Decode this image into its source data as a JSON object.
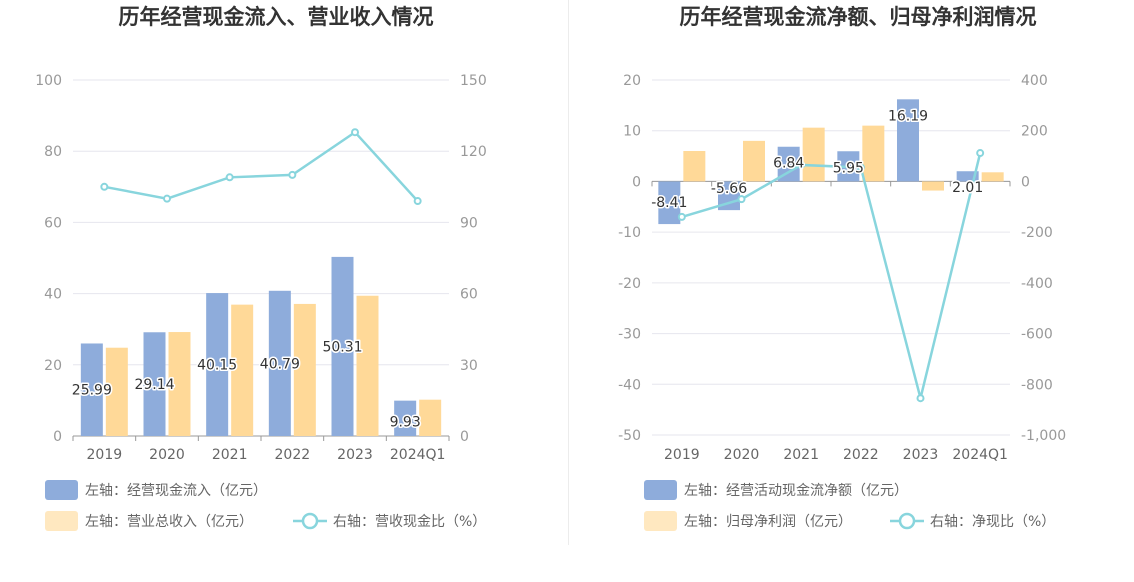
{
  "chart_data": [
    {
      "type": "bar",
      "title": "历年经营现金流入、营业收入情况",
      "categories": [
        "2019",
        "2020",
        "2021",
        "2022",
        "2023",
        "2024Q1"
      ],
      "y_left": {
        "ylim": [
          0,
          100
        ],
        "ticks": [
          "0",
          "20",
          "40",
          "60",
          "80",
          "100"
        ]
      },
      "y_right": {
        "ylim": [
          0,
          150
        ],
        "ticks": [
          "0",
          "30",
          "60",
          "90",
          "120",
          "150"
        ]
      },
      "series": [
        {
          "name": "左轴：经营现金流入（亿元）",
          "type": "bar",
          "axis": "left",
          "color": "#8eacdb",
          "values": [
            25.99,
            29.14,
            40.15,
            40.79,
            50.31,
            9.93
          ],
          "labels": [
            "25.99",
            "29.14",
            "40.15",
            "40.79",
            "50.31",
            "9.93"
          ]
        },
        {
          "name": "左轴：营业总收入（亿元）",
          "type": "bar",
          "axis": "left",
          "color": "#ffd998",
          "values": [
            24.8,
            29.2,
            36.9,
            37.1,
            39.4,
            10.2
          ]
        },
        {
          "name": "右轴：营收现金比（%）",
          "type": "line",
          "axis": "right",
          "color": "#88d5dd",
          "values": [
            105,
            100,
            109,
            110,
            128,
            99
          ]
        }
      ],
      "legend": [
        {
          "text": "左轴：经营现金流入（亿元）",
          "kind": "bar",
          "color": "#8eacdb"
        },
        {
          "text": "左轴：营业总收入（亿元）",
          "kind": "bar",
          "color": "#ffe8c0"
        },
        {
          "text": "右轴：营收现金比（%）",
          "kind": "line",
          "color": "#88d5dd"
        }
      ]
    },
    {
      "type": "bar",
      "title": "历年经营现金流净额、归母净利润情况",
      "categories": [
        "2019",
        "2020",
        "2021",
        "2022",
        "2023",
        "2024Q1"
      ],
      "y_left": {
        "ylim": [
          -50,
          20
        ],
        "ticks": [
          "-50",
          "-40",
          "-30",
          "-20",
          "-10",
          "0",
          "10",
          "20"
        ]
      },
      "y_right": {
        "ylim": [
          -1000,
          400
        ],
        "ticks": [
          "-1,000",
          "-800",
          "-600",
          "-400",
          "-200",
          "0",
          "200",
          "400"
        ]
      },
      "series": [
        {
          "name": "左轴：经营活动现金流净额（亿元）",
          "type": "bar",
          "axis": "left",
          "color": "#8eacdb",
          "values": [
            -8.41,
            -5.66,
            6.84,
            5.95,
            16.19,
            2.01
          ],
          "labels": [
            "-8.41",
            "-5.66",
            "6.84",
            "5.95",
            "16.19",
            "2.01"
          ]
        },
        {
          "name": "左轴：归母净利润（亿元）",
          "type": "bar",
          "axis": "left",
          "color": "#ffd998",
          "values": [
            6.0,
            8.0,
            10.6,
            11.0,
            -1.8,
            1.8
          ]
        },
        {
          "name": "右轴：净现比（%）",
          "type": "line",
          "axis": "right",
          "color": "#88d5dd",
          "values": [
            -140,
            -70,
            65,
            55,
            -855,
            112
          ]
        }
      ],
      "legend": [
        {
          "text": "左轴：经营活动现金流净额（亿元）",
          "kind": "bar",
          "color": "#8eacdb"
        },
        {
          "text": "左轴：归母净利润（亿元）",
          "kind": "bar",
          "color": "#ffe8c0"
        },
        {
          "text": "右轴：净现比（%）",
          "kind": "line",
          "color": "#88d5dd"
        }
      ]
    }
  ]
}
